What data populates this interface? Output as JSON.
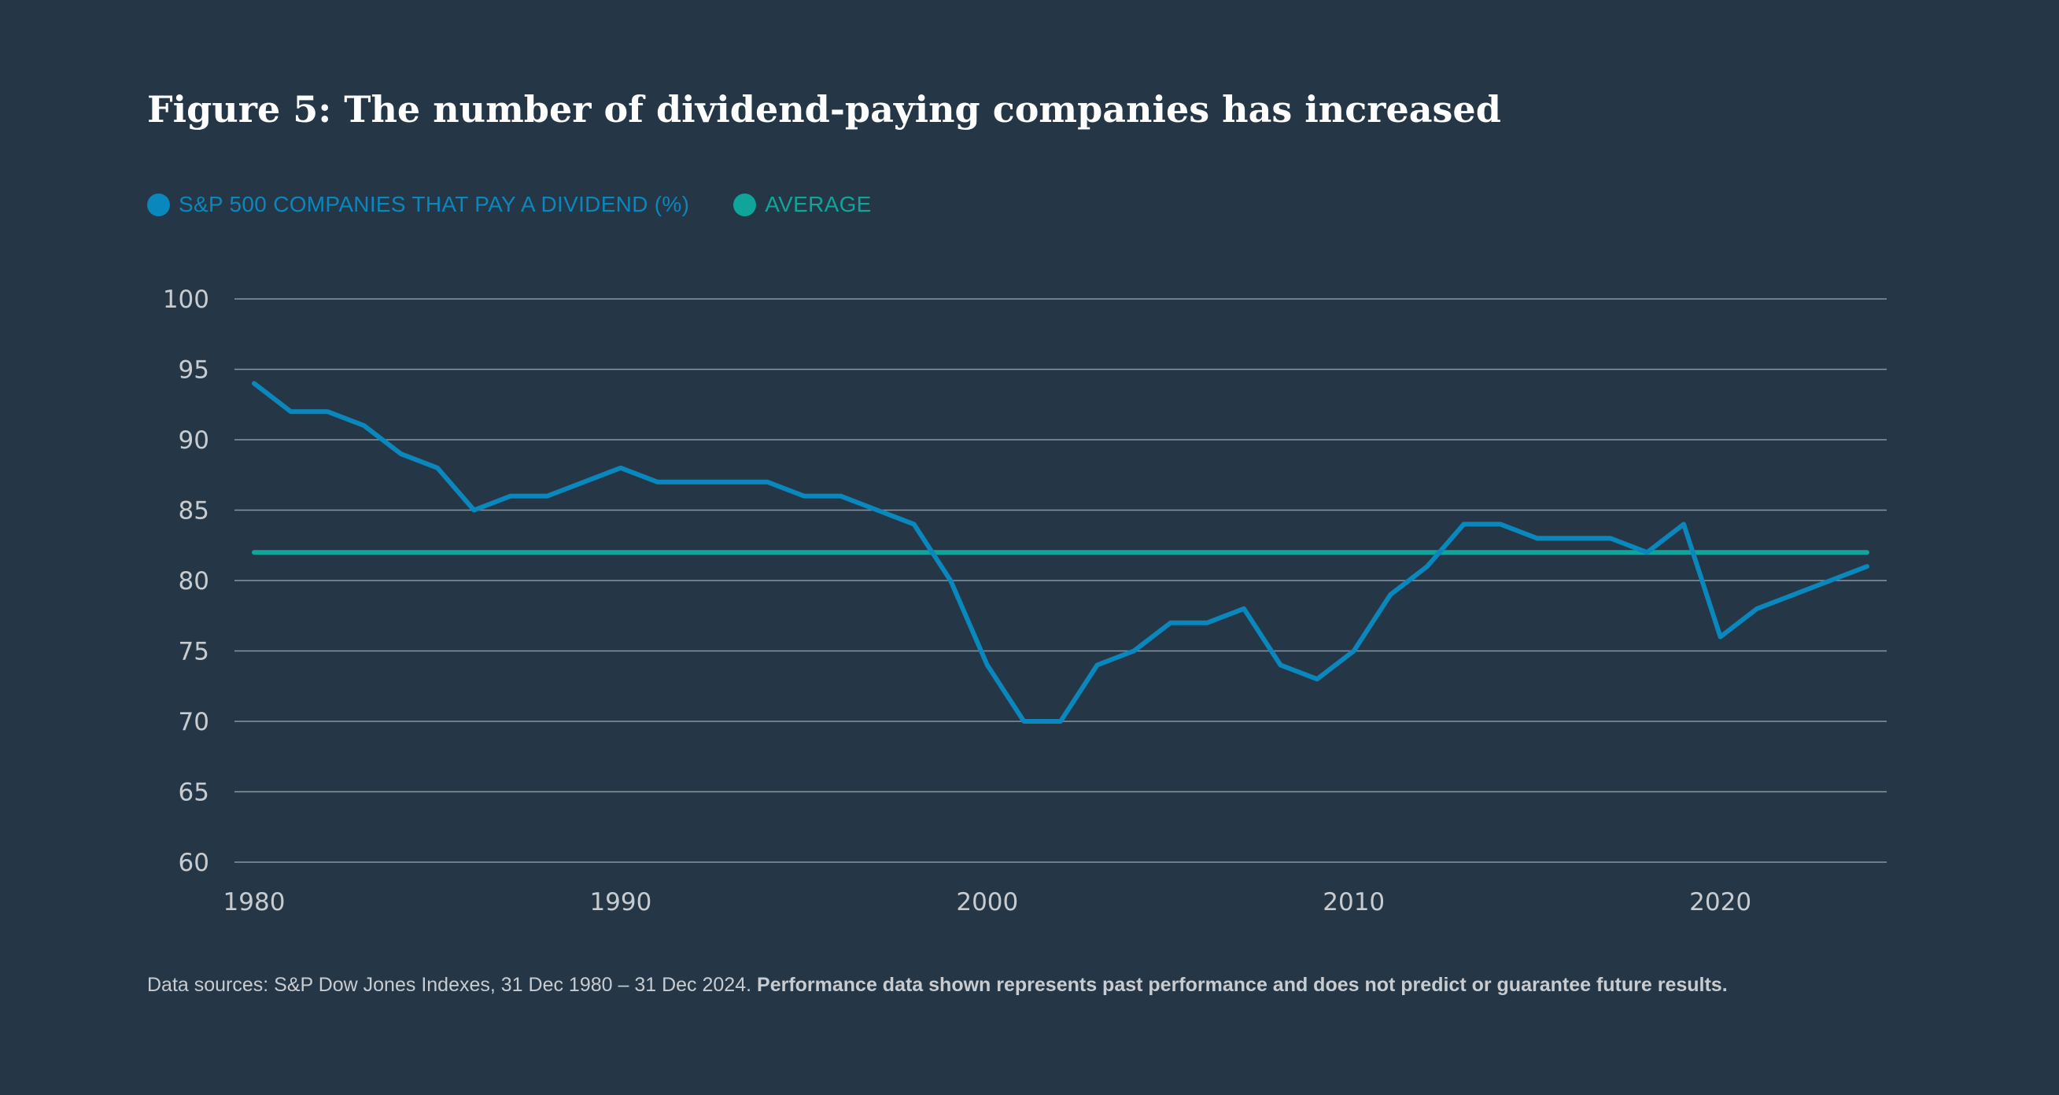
{
  "title": "Figure 5: The number of dividend-paying companies has increased",
  "legend": [
    {
      "label": "S&P 500 COMPANIES THAT PAY A DIVIDEND (%)",
      "color": "#0a87bd"
    },
    {
      "label": "AVERAGE",
      "color": "#0fa59a"
    }
  ],
  "footer": {
    "source": "Data sources: S&P Dow Jones Indexes, 31 Dec 1980 – 31 Dec 2024.",
    "disclaimer": "Performance data shown represents past performance and does not predict or guarantee future results."
  },
  "chart_data": {
    "type": "line",
    "x": [
      1980,
      1981,
      1982,
      1983,
      1984,
      1985,
      1986,
      1987,
      1988,
      1989,
      1990,
      1991,
      1992,
      1993,
      1994,
      1995,
      1996,
      1997,
      1998,
      1999,
      2000,
      2001,
      2002,
      2003,
      2004,
      2005,
      2006,
      2007,
      2008,
      2009,
      2010,
      2011,
      2012,
      2013,
      2014,
      2015,
      2016,
      2017,
      2018,
      2019,
      2020,
      2021,
      2022,
      2023,
      2024
    ],
    "series": [
      {
        "name": "S&P 500 COMPANIES THAT PAY A DIVIDEND (%)",
        "color": "#0a87bd",
        "values": [
          94,
          92,
          92,
          91,
          89,
          88,
          85,
          86,
          86,
          87,
          88,
          87,
          87,
          87,
          87,
          86,
          86,
          85,
          84,
          80,
          74,
          70,
          70,
          74,
          75,
          77,
          77,
          78,
          74,
          73,
          75,
          79,
          81,
          84,
          84,
          83,
          83,
          83,
          82,
          84,
          76,
          78,
          79,
          80,
          81
        ]
      },
      {
        "name": "AVERAGE",
        "color": "#0fa59a",
        "values": [
          82,
          82,
          82,
          82,
          82,
          82,
          82,
          82,
          82,
          82,
          82,
          82,
          82,
          82,
          82,
          82,
          82,
          82,
          82,
          82,
          82,
          82,
          82,
          82,
          82,
          82,
          82,
          82,
          82,
          82,
          82,
          82,
          82,
          82,
          82,
          82,
          82,
          82,
          82,
          82,
          82,
          82,
          82,
          82,
          82
        ]
      }
    ],
    "xlim": [
      1980,
      2024
    ],
    "ylim": [
      60,
      100
    ],
    "y_ticks": [
      60,
      65,
      70,
      75,
      80,
      85,
      90,
      95,
      100
    ],
    "x_ticks": [
      1980,
      1990,
      2000,
      2010,
      2020
    ],
    "grid": true,
    "legend_position": "top-left",
    "colors": {
      "background": "#253746",
      "gridline": "#8a96a0",
      "tick_label": "#c8ccd0"
    }
  }
}
